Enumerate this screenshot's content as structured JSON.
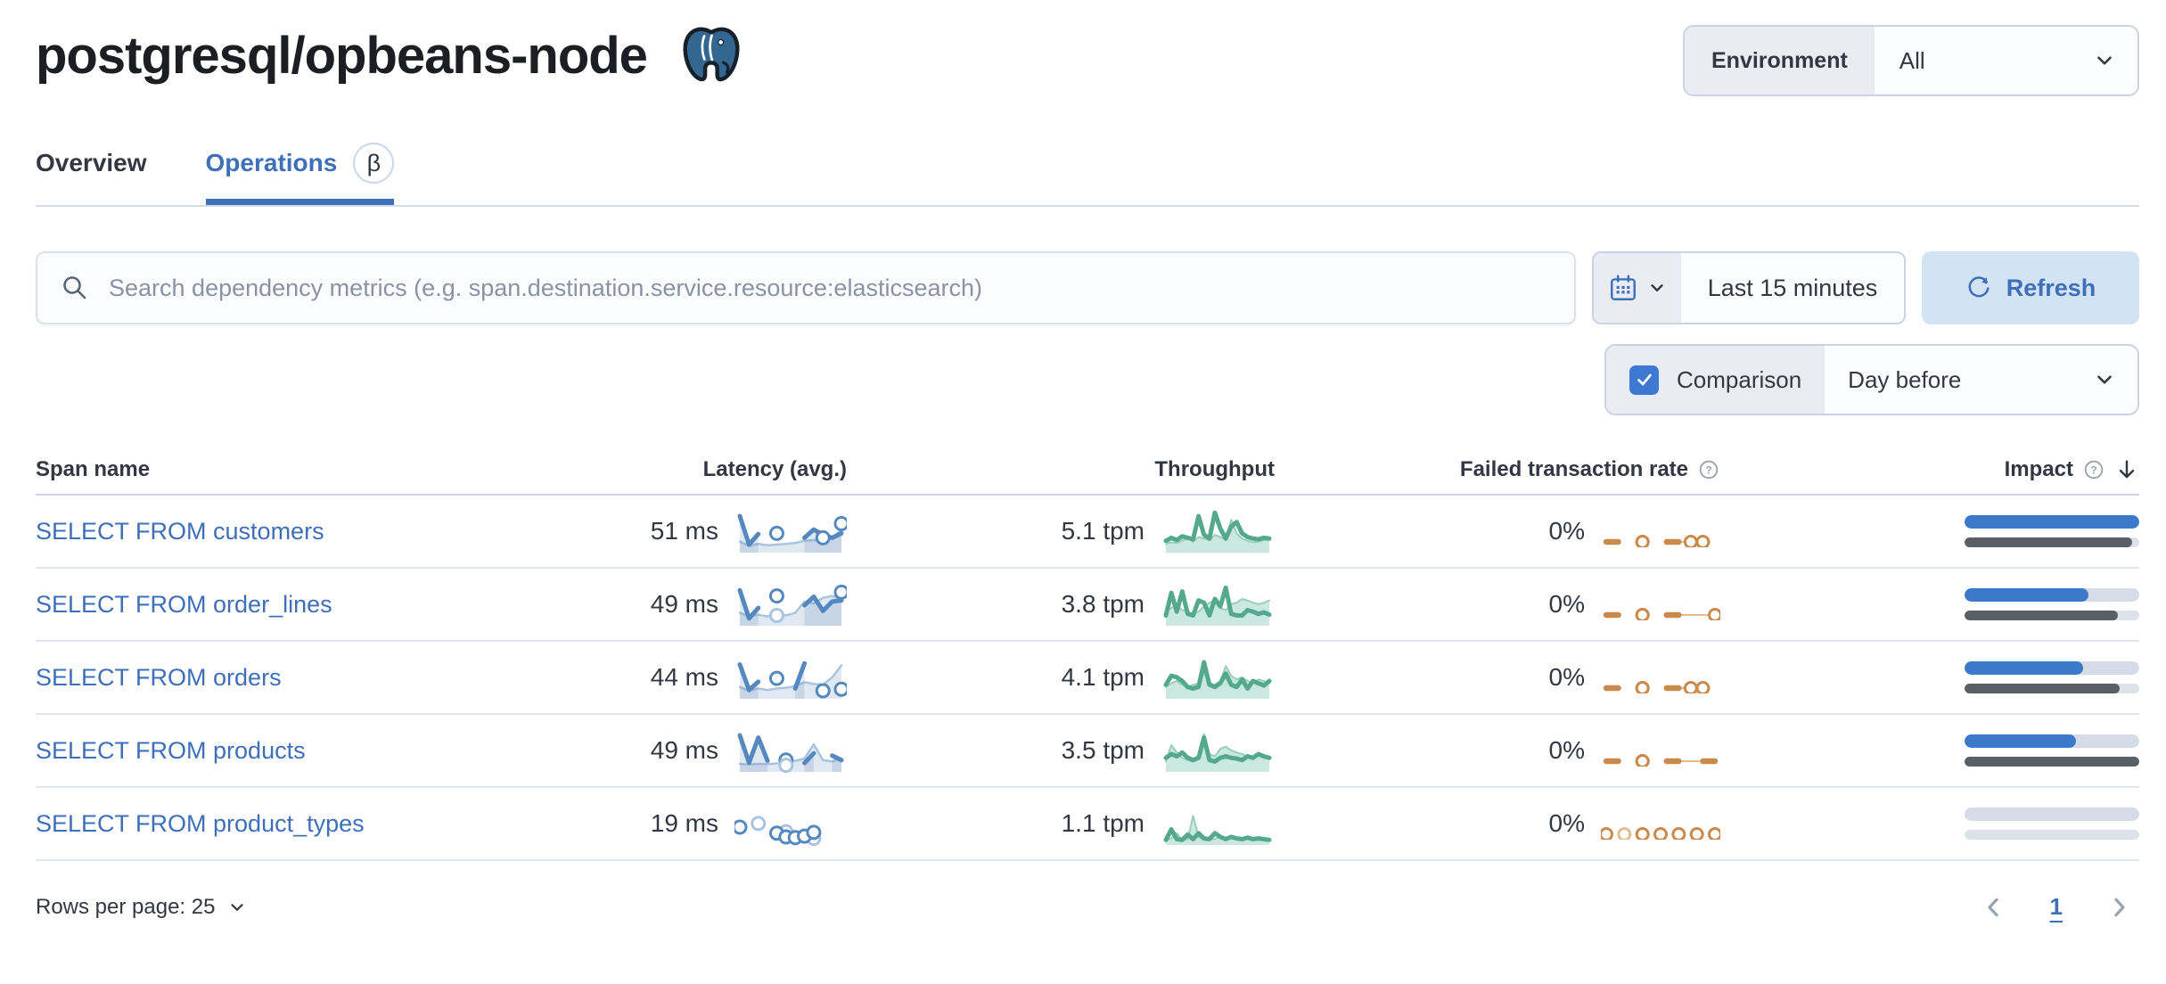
{
  "page": {
    "title": "postgresql/opbeans-node"
  },
  "environment": {
    "label": "Environment",
    "value": "All"
  },
  "tabs": [
    {
      "label": "Overview",
      "active": false
    },
    {
      "label": "Operations",
      "active": true,
      "badge": "β"
    }
  ],
  "search": {
    "placeholder": "Search dependency metrics (e.g. span.destination.service.resource:elasticsearch)"
  },
  "time": {
    "range_label": "Last 15 minutes",
    "refresh_label": "Refresh"
  },
  "comparison": {
    "label": "Comparison",
    "value": "Day before",
    "checked": true
  },
  "table": {
    "columns": {
      "span_name": "Span name",
      "latency": "Latency (avg.)",
      "throughput": "Throughput",
      "failed_rate": "Failed transaction rate",
      "impact": "Impact"
    },
    "sort": {
      "column": "impact",
      "direction": "desc"
    },
    "rows": [
      {
        "name": "SELECT FROM customers",
        "latency": "51 ms",
        "throughput": "5.1 tpm",
        "failed_rate": "0%"
      },
      {
        "name": "SELECT FROM order_lines",
        "latency": "49 ms",
        "throughput": "3.8 tpm",
        "failed_rate": "0%"
      },
      {
        "name": "SELECT FROM orders",
        "latency": "44 ms",
        "throughput": "4.1 tpm",
        "failed_rate": "0%"
      },
      {
        "name": "SELECT FROM products",
        "latency": "49 ms",
        "throughput": "3.5 tpm",
        "failed_rate": "0%"
      },
      {
        "name": "SELECT FROM product_types",
        "latency": "19 ms",
        "throughput": "1.1 tpm",
        "failed_rate": "0%"
      }
    ]
  },
  "footer": {
    "rows_per_page_label": "Rows per page: 25",
    "current_page": "1"
  },
  "colors": {
    "primary_blue": "#3E6FB8",
    "refresh_bg": "#D3E3F3",
    "prepend_bg": "#E9EDF3",
    "checkbox_blue": "#3E78D2",
    "header_border": "#CBD5E5",
    "row_border": "#E1E6F0",
    "subdued_icon": "#98A2B3",
    "latency_line": "#5588BE",
    "latency_faint": "#A9C4E1",
    "latency_fill": "rgba(100,140,190,0.20)",
    "throughput_line": "#54A98D",
    "throughput_faint": "#9BCEBA",
    "throughput_fill": "rgba(84,179,153,0.30)",
    "failed_line": "#C98A4B",
    "failed_faint": "#E2BE93",
    "impact_bar": "#3D79CB",
    "impact_prev_bar": "#5A5E66",
    "postgres_blue": "#336791"
  },
  "chart_data": [
    {
      "type": "sparkline-set",
      "row": "SELECT FROM customers",
      "latency_ms": 51,
      "throughput_tpm": 5.1,
      "failed_pct": 0,
      "impact_pct": 100,
      "impact_prev_pct": 96,
      "latency_spark": {
        "n": 12,
        "curr": [
          88,
          12,
          40,
          null,
          42,
          null,
          null,
          30,
          52,
          38,
          30,
          42
        ],
        "prev": [
          20,
          8,
          14,
          10,
          12,
          14,
          16,
          22,
          24,
          20,
          30,
          52
        ],
        "markers": [
          [
            9,
            30
          ],
          [
            11,
            68
          ]
        ],
        "faint_markers": []
      },
      "throughput_spark": {
        "curr": [
          22,
          30,
          24,
          34,
          30,
          26,
          88,
          38,
          28,
          97,
          55,
          28,
          60,
          72,
          42,
          32,
          28,
          26,
          30,
          28
        ],
        "prev": [
          14,
          18,
          16,
          22,
          28,
          20,
          32,
          28,
          24,
          38,
          32,
          26,
          78,
          42,
          28,
          22,
          18,
          20,
          24,
          26
        ]
      },
      "failed_spark": {
        "n": 10,
        "curr": [
          0,
          0,
          null,
          0,
          null,
          0,
          0,
          null,
          null,
          null
        ],
        "prev": [
          null,
          null,
          null,
          null,
          null,
          0,
          0,
          0,
          0,
          null
        ],
        "markers": [
          [
            3,
            0
          ],
          [
            7,
            0
          ],
          [
            8,
            0
          ]
        ],
        "faint_markers": []
      }
    },
    {
      "type": "sparkline-set",
      "row": "SELECT FROM order_lines",
      "latency_ms": 49,
      "throughput_tpm": 3.8,
      "failed_pct": 0,
      "impact_pct": 71,
      "impact_prev_pct": 88,
      "latency_spark": {
        "n": 12,
        "curr": [
          85,
          10,
          38,
          null,
          70,
          null,
          null,
          45,
          68,
          30,
          55,
          58
        ],
        "prev": [
          25,
          15,
          20,
          15,
          22,
          18,
          25,
          55,
          50,
          65,
          70,
          62
        ],
        "markers": [
          [
            11,
            80
          ]
        ],
        "faint_markers": [
          [
            4,
            18
          ]
        ]
      },
      "throughput_spark": {
        "curr": [
          18,
          78,
          28,
          82,
          22,
          18,
          58,
          52,
          18,
          62,
          42,
          92,
          22,
          18,
          18,
          32,
          28,
          22,
          26,
          20
        ],
        "prev": [
          28,
          38,
          48,
          32,
          28,
          22,
          28,
          42,
          52,
          58,
          38,
          32,
          48,
          52,
          62,
          58,
          52,
          48,
          52,
          58
        ]
      },
      "failed_spark": {
        "n": 10,
        "curr": [
          0,
          0,
          null,
          0,
          null,
          0,
          0,
          null,
          null,
          null
        ],
        "prev": [
          null,
          null,
          null,
          null,
          null,
          0,
          0,
          0,
          0,
          0
        ],
        "markers": [
          [
            3,
            0
          ],
          [
            9,
            0
          ]
        ],
        "faint_markers": []
      }
    },
    {
      "type": "sparkline-set",
      "row": "SELECT FROM orders",
      "latency_ms": 44,
      "throughput_tpm": 4.1,
      "failed_pct": 0,
      "impact_pct": 68,
      "impact_prev_pct": 89,
      "latency_spark": {
        "n": 12,
        "curr": [
          82,
          14,
          36,
          null,
          45,
          null,
          18,
          85,
          null,
          12,
          null,
          16
        ],
        "prev": [
          22,
          12,
          18,
          14,
          18,
          20,
          24,
          35,
          30,
          28,
          48,
          80
        ],
        "markers": [],
        "faint_markers": []
      },
      "throughput_spark": {
        "curr": [
          28,
          52,
          48,
          38,
          22,
          18,
          22,
          88,
          28,
          22,
          32,
          58,
          28,
          22,
          42,
          18,
          38,
          32,
          26,
          38
        ],
        "prev": [
          22,
          32,
          38,
          28,
          22,
          28,
          32,
          58,
          32,
          28,
          38,
          78,
          52,
          42,
          48,
          38,
          32,
          42,
          38,
          32
        ]
      },
      "failed_spark": {
        "n": 10,
        "curr": [
          0,
          0,
          null,
          0,
          null,
          0,
          0,
          null,
          null,
          null
        ],
        "prev": [
          null,
          null,
          null,
          null,
          null,
          0,
          0,
          0,
          0,
          null
        ],
        "markers": [
          [
            3,
            0
          ],
          [
            7,
            0
          ],
          [
            8,
            0
          ]
        ],
        "faint_markers": []
      }
    },
    {
      "type": "sparkline-set",
      "row": "SELECT FROM products",
      "latency_ms": 49,
      "throughput_tpm": 3.5,
      "failed_pct": 0,
      "impact_pct": 64,
      "impact_prev_pct": 100,
      "latency_spark": {
        "n": 12,
        "curr": [
          88,
          15,
          82,
          20,
          null,
          22,
          null,
          14,
          40,
          null,
          34,
          22
        ],
        "prev": [
          12,
          10,
          12,
          11,
          13,
          16,
          20,
          26,
          64,
          22,
          18,
          26
        ],
        "markers": [],
        "faint_markers": [
          [
            5,
            8
          ]
        ]
      },
      "throughput_spark": {
        "curr": [
          28,
          38,
          32,
          42,
          28,
          22,
          28,
          82,
          22,
          18,
          28,
          32,
          28,
          26,
          22,
          32,
          28,
          38,
          32,
          28
        ],
        "prev": [
          18,
          62,
          42,
          28,
          22,
          18,
          28,
          92,
          38,
          32,
          52,
          58,
          48,
          42,
          38,
          32,
          28,
          42,
          32,
          28
        ]
      },
      "failed_spark": {
        "n": 10,
        "curr": [
          0,
          0,
          null,
          0,
          null,
          0,
          0,
          null,
          0,
          0
        ],
        "prev": [
          null,
          null,
          null,
          null,
          null,
          0,
          0,
          0,
          0,
          0
        ],
        "markers": [
          [
            3,
            0
          ]
        ],
        "faint_markers": []
      }
    },
    {
      "type": "sparkline-set",
      "row": "SELECT FROM product_types",
      "latency_ms": 19,
      "throughput_tpm": 1.1,
      "failed_pct": 0,
      "impact_pct": 0,
      "impact_prev_pct": 0,
      "latency_spark": {
        "n": 12,
        "curr": [],
        "prev": [],
        "markers": [
          [
            0,
            38
          ],
          [
            4,
            22
          ],
          [
            5,
            12
          ],
          [
            6,
            10
          ],
          [
            7,
            14
          ],
          [
            8,
            24
          ]
        ],
        "faint_markers": [
          [
            2,
            48
          ],
          [
            5,
            26
          ],
          [
            8,
            8
          ]
        ]
      },
      "throughput_spark": {
        "curr": [
          4,
          32,
          6,
          4,
          18,
          6,
          22,
          8,
          6,
          22,
          12,
          6,
          12,
          8,
          6,
          10,
          6,
          8,
          6,
          4
        ],
        "prev": [
          4,
          8,
          22,
          4,
          6,
          68,
          12,
          4,
          8,
          6,
          12,
          4,
          10,
          6,
          4,
          8,
          6,
          4,
          6,
          4
        ]
      },
      "failed_spark": {
        "n": 7,
        "curr": [],
        "prev": [],
        "markers": [
          [
            0,
            0
          ],
          [
            2,
            0
          ],
          [
            3,
            0
          ],
          [
            4,
            0
          ],
          [
            5,
            0
          ],
          [
            6,
            0
          ]
        ],
        "faint_markers": [
          [
            1,
            0
          ]
        ]
      }
    }
  ]
}
